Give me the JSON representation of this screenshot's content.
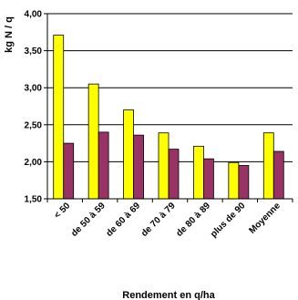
{
  "chart_data": {
    "type": "bar",
    "xlabel": "Rendement en q/ha",
    "ylabel": "kg N / q",
    "ylim": [
      1.5,
      4.0
    ],
    "yticks": [
      "1,50",
      "2,00",
      "2,50",
      "3,00",
      "3,50",
      "4,00"
    ],
    "categories": [
      "< 50",
      "de 50 à 59",
      "de 60 à 69",
      "de 70 à 79",
      "de 80 à 89",
      "plus de 90",
      "Moyenne"
    ],
    "series": [
      {
        "color": "#ffff00",
        "values": [
          3.71,
          3.05,
          2.7,
          2.39,
          2.21,
          1.99,
          2.39
        ]
      },
      {
        "color": "#993366",
        "values": [
          2.25,
          2.4,
          2.36,
          2.17,
          2.04,
          1.95,
          2.14
        ]
      }
    ],
    "grid": true,
    "legend": "none"
  }
}
